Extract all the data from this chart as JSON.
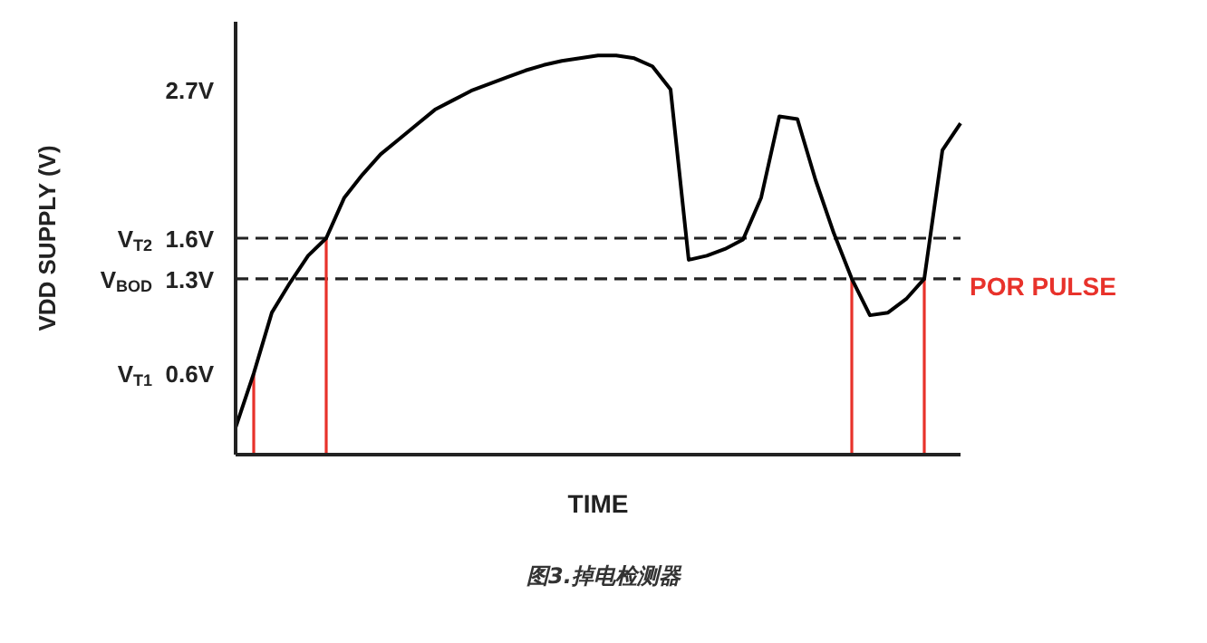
{
  "chart_data": {
    "type": "line",
    "title": "图3.掉电检测器",
    "xlabel": "TIME",
    "ylabel": "VDD SUPPLY (V)",
    "annotations": [
      "POR PULSE"
    ],
    "categories": [
      null,
      null,
      null,
      null,
      null,
      null,
      null,
      null,
      null,
      null,
      null,
      null,
      null,
      null,
      null,
      null,
      null,
      null,
      null,
      null,
      null,
      null,
      null,
      null,
      null,
      null,
      null,
      null,
      null,
      null,
      null,
      null,
      null,
      null,
      null,
      null,
      null,
      null,
      null,
      null,
      null
    ],
    "ylim": [
      0,
      3.2
    ],
    "yticks": [
      {
        "value": 0.6,
        "label": "V$_{T1}$  0.6V"
      },
      {
        "value": 1.3,
        "label": "V$_{BOD}$  1.3V"
      },
      {
        "value": 1.6,
        "label": "V$_{T2}$  1.6V"
      },
      {
        "value": 2.7,
        "label": "2.7V"
      }
    ],
    "tick_labels": "y",
    "grid": false,
    "marker": "none",
    "line_style": "solid",
    "ref_lines": [
      {
        "axis": "y",
        "value": 1.6,
        "color": "#222222",
        "line_style": "dashed"
      },
      {
        "axis": "y",
        "value": 1.3,
        "color": "#222222",
        "line_style": "dashed"
      }
    ],
    "series": [
      {
        "color": "#000000",
        "errors": [
          null,
          [
            0,
            0.6
          ],
          null,
          null,
          null,
          [
            0,
            1.6
          ],
          null,
          null,
          null,
          null,
          null,
          null,
          null,
          null,
          null,
          null,
          null,
          null,
          null,
          null,
          null,
          null,
          null,
          null,
          null,
          null,
          null,
          null,
          null,
          null,
          null,
          null,
          null,
          null,
          [
            0,
            1.3
          ],
          null,
          null,
          null,
          [
            0,
            1.3
          ],
          null,
          null
        ],
        "values": [
          0.2,
          0.6,
          1.05,
          1.27,
          1.47,
          1.6,
          1.9,
          2.07,
          2.22,
          2.33,
          2.44,
          2.55,
          2.62,
          2.69,
          2.74,
          2.79,
          2.84,
          2.88,
          2.91,
          2.93,
          2.95,
          2.95,
          2.93,
          2.87,
          2.7,
          1.44,
          1.47,
          1.52,
          1.59,
          1.9,
          2.5,
          2.48,
          2.03,
          1.64,
          1.3,
          1.03,
          1.05,
          1.15,
          1.3,
          2.25,
          2.45
        ]
      }
    ]
  }
}
